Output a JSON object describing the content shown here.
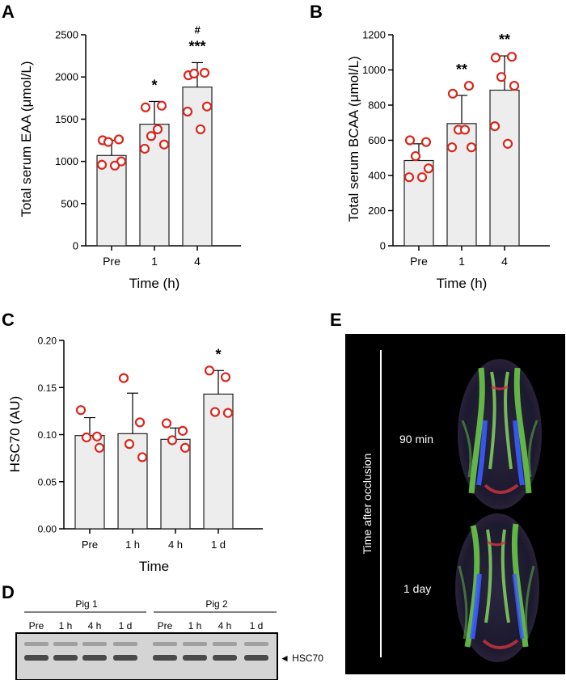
{
  "colors": {
    "bar_fill": "#ededed",
    "bar_stroke": "#222222",
    "dot_stroke": "#d9261c",
    "dti_background": "#000000",
    "dti_text": "#ffffff"
  },
  "chart_data": [
    {
      "panel": "A",
      "type": "bar",
      "ylabel": "Total serum EAA (μmol/L)",
      "xlabel": "Time (h)",
      "categories": [
        "Pre",
        "1",
        "4"
      ],
      "values": [
        1070,
        1440,
        1880
      ],
      "errors": [
        180,
        270,
        290
      ],
      "points": [
        [
          1250,
          1260,
          1230,
          1000,
          960,
          950
        ],
        [
          1640,
          1660,
          1300,
          1200,
          1150,
          1380
        ],
        [
          2020,
          2050,
          2040,
          1650,
          1590,
          1380
        ]
      ],
      "annotations": [
        "",
        "*",
        "***"
      ],
      "annotations2": [
        "",
        "",
        "#"
      ],
      "ylim": [
        0,
        2500
      ],
      "yticks": [
        0,
        500,
        1000,
        1500,
        2000,
        2500
      ]
    },
    {
      "panel": "B",
      "type": "bar",
      "ylabel": "Total serum BCAA (μmol/L)",
      "xlabel": "Time (h)",
      "categories": [
        "Pre",
        "1",
        "4"
      ],
      "values": [
        485,
        695,
        885
      ],
      "errors": [
        95,
        160,
        195
      ],
      "points": [
        [
          600,
          590,
          510,
          440,
          390,
          390
        ],
        [
          865,
          910,
          660,
          560,
          560,
          660
        ],
        [
          1070,
          1075,
          960,
          910,
          680,
          580
        ]
      ],
      "annotations": [
        "",
        "**",
        "**"
      ],
      "annotations2": [
        "",
        "",
        ""
      ],
      "ylim": [
        0,
        1200
      ],
      "yticks": [
        0,
        200,
        400,
        600,
        800,
        1000,
        1200
      ]
    },
    {
      "panel": "C",
      "type": "bar",
      "ylabel": "HSC70 (AU)",
      "xlabel": "Time",
      "categories": [
        "Pre",
        "1 h",
        "4 h",
        "1 d"
      ],
      "values": [
        0.099,
        0.101,
        0.095,
        0.143
      ],
      "errors": [
        0.019,
        0.043,
        0.012,
        0.025
      ],
      "points": [
        [
          0.126,
          0.098,
          0.097,
          0.086
        ],
        [
          0.16,
          0.113,
          0.09,
          0.076
        ],
        [
          0.112,
          0.104,
          0.094,
          0.086
        ],
        [
          0.168,
          0.161,
          0.124,
          0.123
        ]
      ],
      "annotations": [
        "",
        "",
        "",
        "*"
      ],
      "annotations2": [
        "",
        "",
        "",
        ""
      ],
      "ylim": [
        0,
        0.2
      ],
      "yticks": [
        "0.00",
        "0.05",
        "0.10",
        "0.15",
        "0.20"
      ]
    }
  ],
  "panels": {
    "a": "A",
    "b": "B",
    "c": "C",
    "d": "D",
    "e": "E"
  },
  "western_blot": {
    "pig1": "Pig 1",
    "pig2": "Pig 2",
    "lanes": [
      "Pre",
      "1 h",
      "4 h",
      "1 d",
      "Pre",
      "1 h",
      "4 h",
      "1 d"
    ],
    "band_label": "◄ HSC70"
  },
  "dti": {
    "axis_label": "Time after occlusion",
    "label_top": "90 min",
    "label_bottom": "1 day"
  }
}
